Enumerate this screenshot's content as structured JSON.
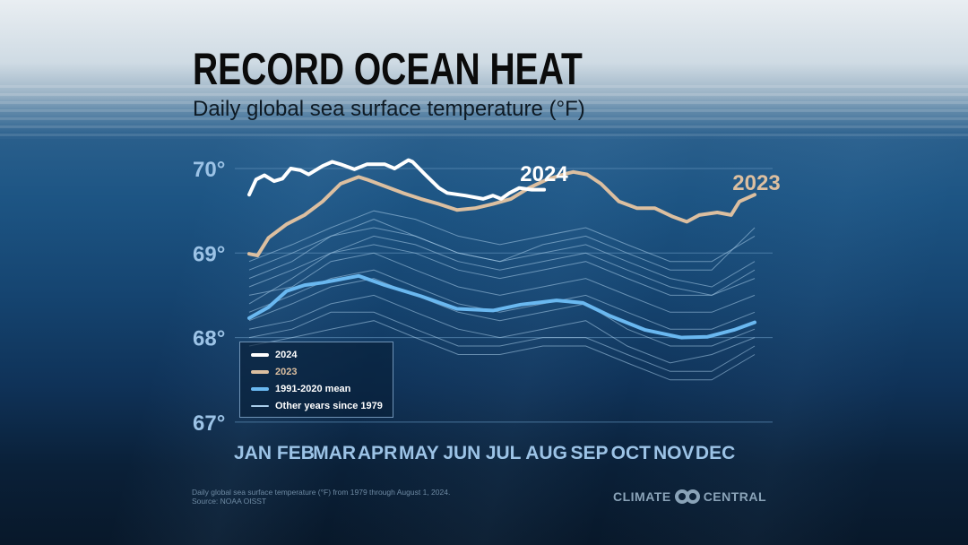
{
  "header": {
    "title": "RECORD OCEAN HEAT",
    "subtitle": "Daily global sea surface temperature (°F)"
  },
  "footer": {
    "note": "Daily global sea surface temperature (°F) from 1979 through August 1, 2024.",
    "source": "Source: NOAA OISST",
    "logo_left": "CLIMATE",
    "logo_right": "CENTRAL"
  },
  "colors": {
    "y2024": "#ffffff",
    "y2023": "#dcbfa0",
    "mean": "#6ab8f0",
    "other": "#a9cdea",
    "grid": "#5f8fb8",
    "axis_text": "#9cc3e6"
  },
  "chart_data": {
    "type": "line",
    "title": "RECORD OCEAN HEAT",
    "subtitle": "Daily global sea surface temperature (°F)",
    "xlabel": "",
    "ylabel": "",
    "x_units": "day of year",
    "xlim": [
      0,
      365
    ],
    "ylim": [
      67,
      70.2
    ],
    "grid": true,
    "legend_position": "bottom-left",
    "y_ticks": [
      67,
      68,
      69,
      70
    ],
    "y_tick_labels": [
      "67°",
      "68°",
      "69°",
      "70°"
    ],
    "x_ticks": [
      0,
      31,
      59,
      90,
      120,
      151,
      181,
      212,
      243,
      273,
      304,
      334
    ],
    "x_tick_labels": [
      "JAN",
      "FEB",
      "MAR",
      "APR",
      "MAY",
      "JUN",
      "JUL",
      "AUG",
      "SEP",
      "OCT",
      "NOV",
      "DEC"
    ],
    "series": [
      {
        "name": "2024",
        "label": "2024",
        "x": [
          0,
          5,
          11,
          18,
          24,
          30,
          37,
          43,
          53,
          60,
          66,
          76,
          85,
          98,
          105,
          115,
          118,
          127,
          137,
          143,
          156,
          169,
          176,
          182,
          188,
          195,
          204,
          213
        ],
        "y": [
          69.69,
          69.87,
          69.92,
          69.85,
          69.88,
          70.0,
          69.98,
          69.93,
          70.03,
          70.08,
          70.05,
          69.99,
          70.05,
          70.05,
          70.0,
          70.1,
          70.08,
          69.93,
          69.77,
          69.71,
          69.68,
          69.64,
          69.68,
          69.64,
          69.71,
          69.77,
          69.75,
          69.75
        ]
      },
      {
        "name": "2023",
        "label": "2023",
        "x": [
          0,
          6,
          14,
          27,
          40,
          53,
          66,
          79,
          85,
          98,
          111,
          124,
          137,
          150,
          163,
          176,
          189,
          202,
          215,
          227,
          234,
          244,
          254,
          267,
          280,
          293,
          306,
          316,
          325,
          338,
          348,
          354,
          365
        ],
        "y": [
          68.99,
          68.97,
          69.18,
          69.34,
          69.45,
          69.61,
          69.82,
          69.9,
          69.87,
          69.79,
          69.71,
          69.64,
          69.58,
          69.51,
          69.53,
          69.58,
          69.64,
          69.77,
          69.87,
          69.93,
          69.96,
          69.93,
          69.82,
          69.61,
          69.53,
          69.53,
          69.43,
          69.37,
          69.45,
          69.48,
          69.45,
          69.61,
          69.69
        ]
      },
      {
        "name": "1991-2020 mean",
        "x": [
          0,
          14,
          27,
          40,
          53,
          79,
          98,
          124,
          150,
          176,
          196,
          222,
          241,
          260,
          286,
          312,
          331,
          350,
          365
        ],
        "y": [
          68.23,
          68.36,
          68.55,
          68.62,
          68.65,
          68.73,
          68.62,
          68.49,
          68.34,
          68.32,
          68.39,
          68.44,
          68.41,
          68.26,
          68.09,
          68.0,
          68.01,
          68.09,
          68.18
        ]
      }
    ],
    "other_years": {
      "name": "Other years since 1979",
      "x": [
        0,
        31,
        59,
        90,
        120,
        151,
        181,
        212,
        243,
        273,
        304,
        334,
        365
      ],
      "y": [
        [
          68.9,
          69.1,
          69.3,
          69.5,
          69.4,
          69.2,
          69.1,
          69.2,
          69.3,
          69.1,
          68.9,
          68.9,
          69.2
        ],
        [
          68.7,
          68.9,
          69.2,
          69.4,
          69.2,
          69.0,
          68.9,
          69.0,
          69.1,
          68.9,
          68.7,
          68.6,
          68.9
        ],
        [
          68.6,
          68.8,
          69.0,
          69.1,
          69.0,
          68.8,
          68.7,
          68.8,
          68.9,
          68.7,
          68.5,
          68.5,
          68.7
        ],
        [
          68.5,
          68.6,
          68.9,
          69.0,
          68.8,
          68.6,
          68.5,
          68.6,
          68.7,
          68.5,
          68.3,
          68.3,
          68.5
        ],
        [
          68.3,
          68.5,
          68.7,
          68.8,
          68.6,
          68.4,
          68.3,
          68.4,
          68.5,
          68.3,
          68.1,
          68.1,
          68.3
        ],
        [
          68.2,
          68.4,
          68.6,
          68.7,
          68.5,
          68.3,
          68.2,
          68.3,
          68.4,
          68.1,
          67.9,
          67.9,
          68.1
        ],
        [
          68.1,
          68.2,
          68.4,
          68.5,
          68.3,
          68.1,
          68.0,
          68.1,
          68.2,
          67.9,
          67.7,
          67.8,
          68.0
        ],
        [
          68.0,
          68.1,
          68.3,
          68.3,
          68.1,
          67.9,
          67.9,
          68.0,
          68.0,
          67.8,
          67.6,
          67.6,
          67.9
        ],
        [
          67.9,
          68.0,
          68.1,
          68.2,
          68.0,
          67.8,
          67.8,
          67.9,
          67.9,
          67.7,
          67.5,
          67.5,
          67.8
        ],
        [
          68.4,
          68.7,
          69.0,
          69.2,
          69.1,
          68.9,
          68.8,
          68.9,
          69.0,
          68.8,
          68.6,
          68.5,
          68.8
        ],
        [
          68.8,
          69.0,
          69.2,
          69.3,
          69.2,
          69.0,
          68.9,
          69.1,
          69.2,
          69.0,
          68.8,
          68.8,
          69.3
        ]
      ]
    },
    "legend": [
      "2024",
      "2023",
      "1991-2020 mean",
      "Other years since 1979"
    ]
  }
}
